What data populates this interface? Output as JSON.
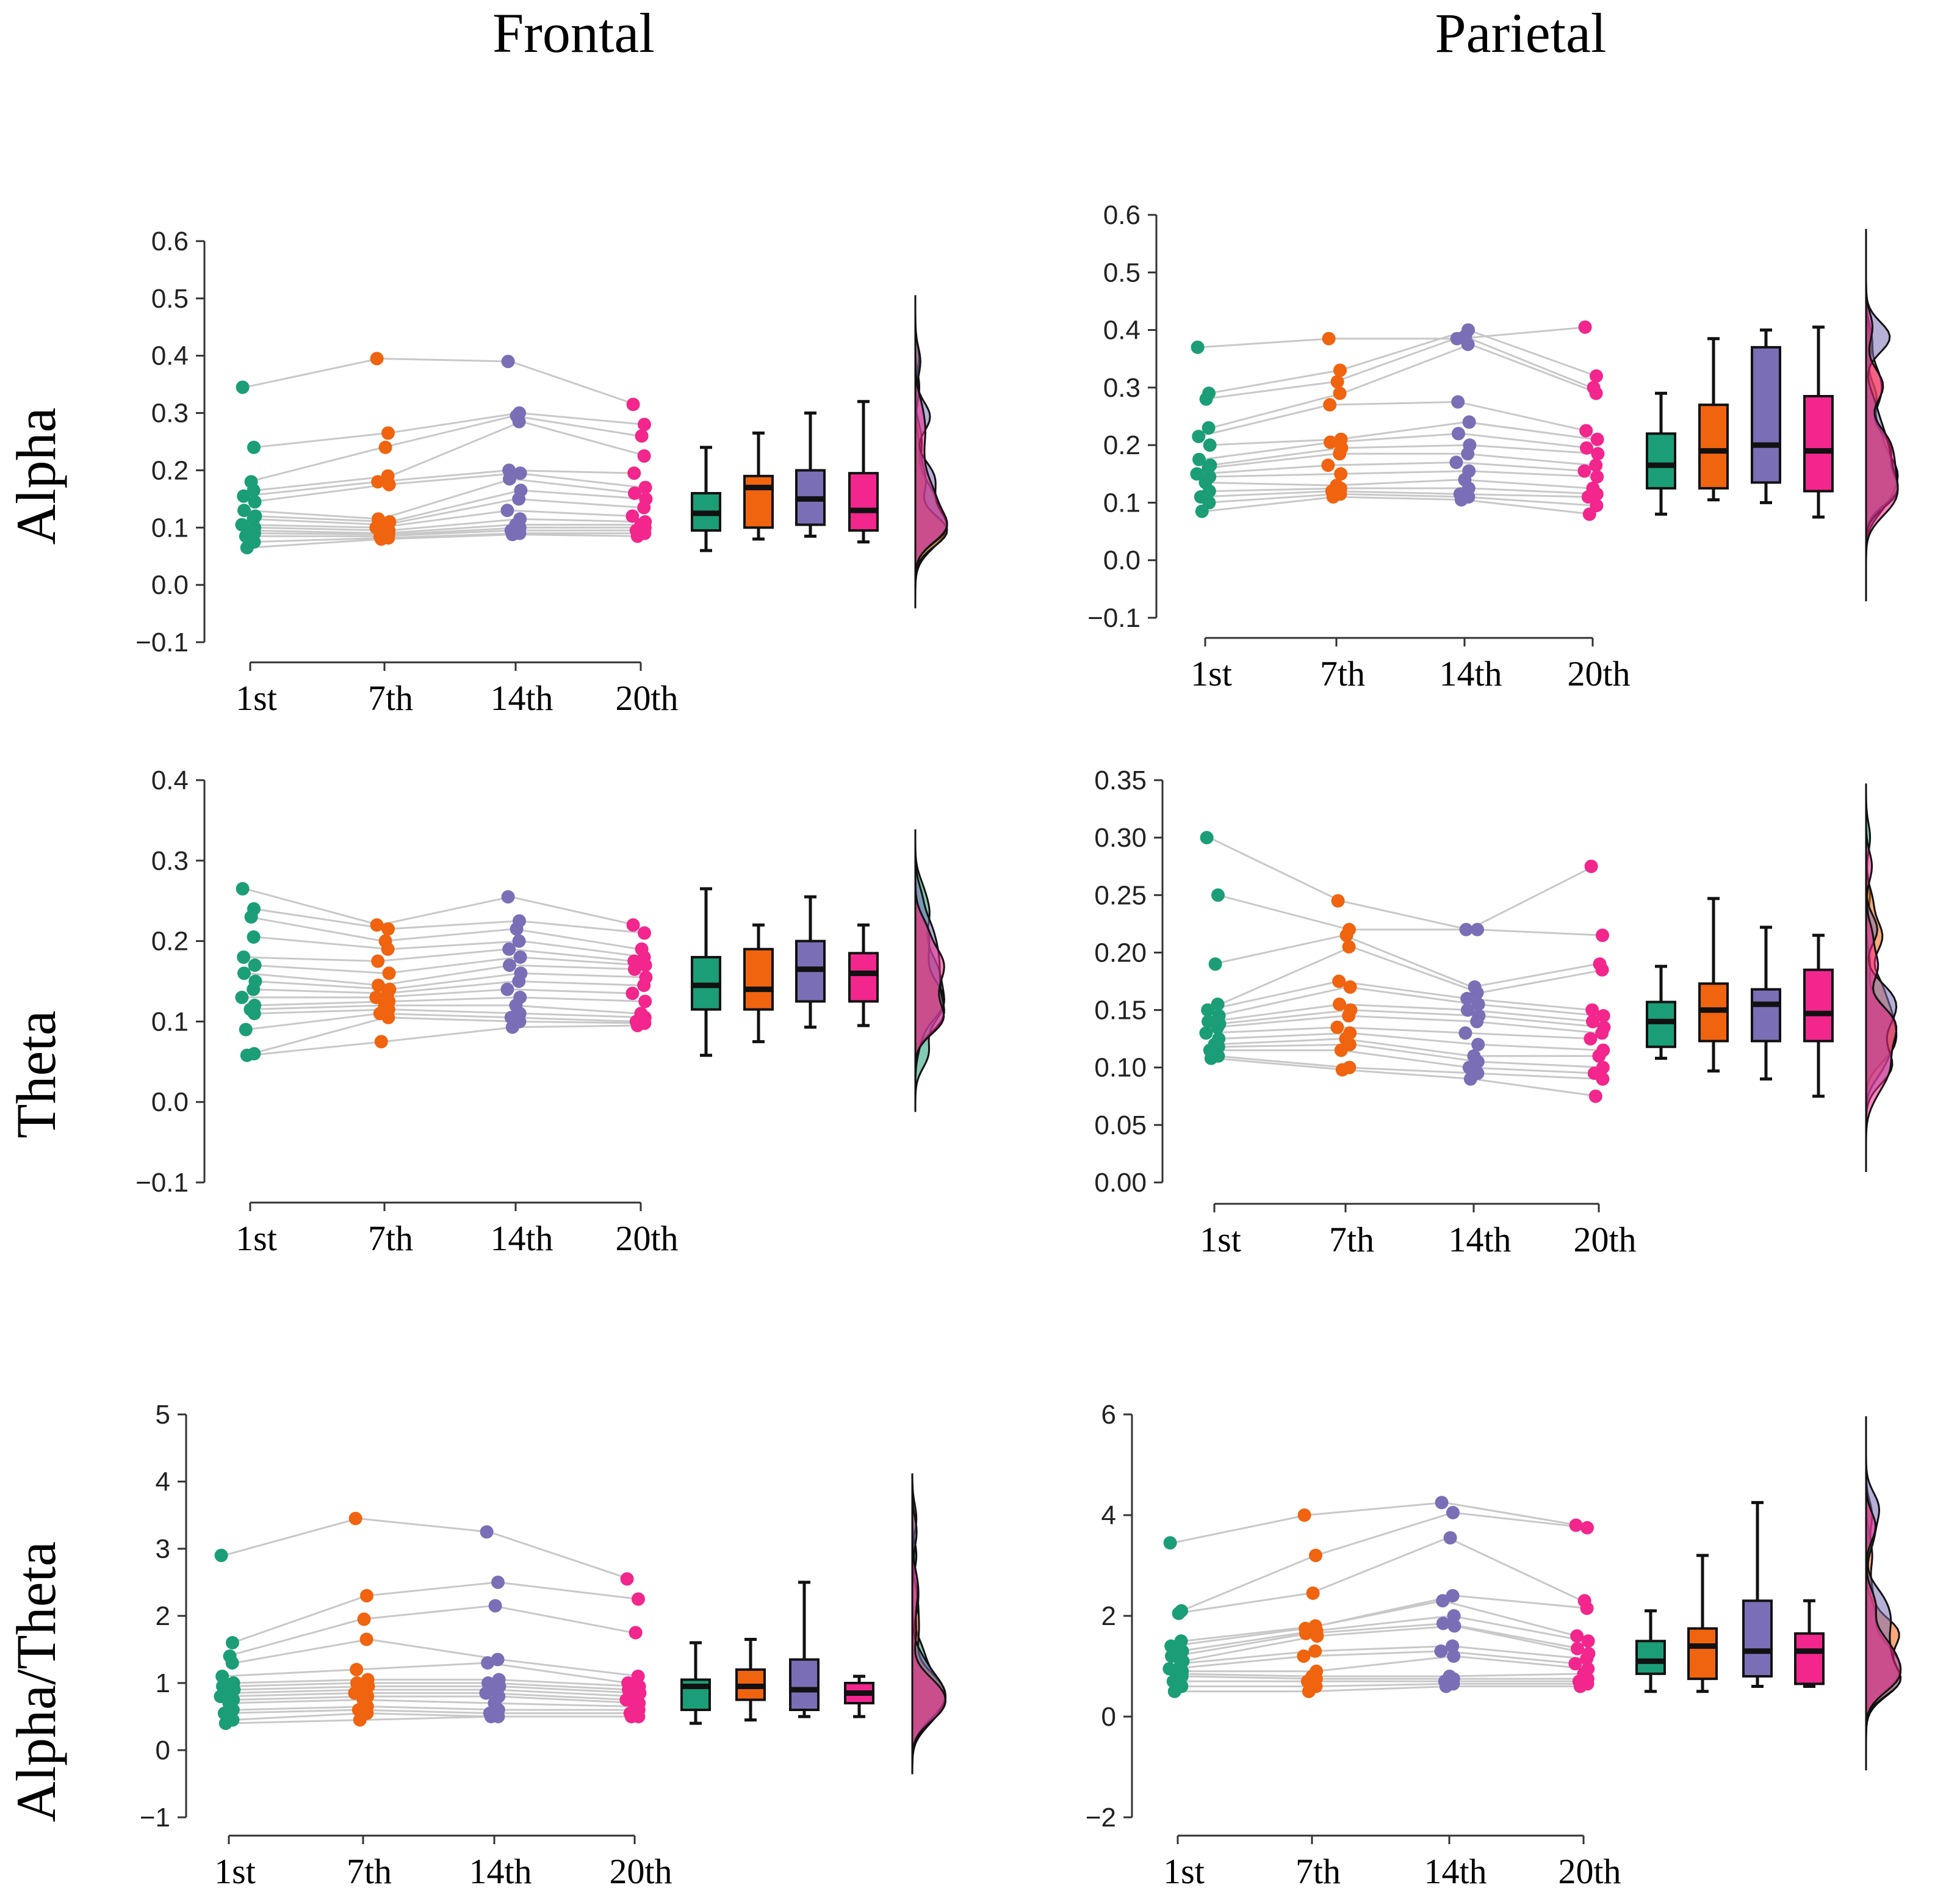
{
  "titles": {
    "frontal": "Frontal",
    "parietal": "Parietal"
  },
  "row_labels": {
    "alpha": "Alpha",
    "theta": "Theta",
    "ratio": "Alpha/Theta"
  },
  "colors": {
    "1st": "#1b9e77",
    "7th": "#f0630f",
    "14th": "#7a6fb6",
    "20th": "#f2268d"
  },
  "chart_data": [
    {
      "id": "frontal-alpha",
      "type": "raincloud",
      "region": "Frontal",
      "measure": "Alpha",
      "categories": [
        "1st",
        "7th",
        "14th",
        "20th"
      ],
      "yticks": [
        "0.6",
        "0.5",
        "0.4",
        "0.3",
        "0.2",
        "0.1",
        "0.0",
        "−0.1"
      ],
      "ylim": [
        -0.1,
        0.6
      ],
      "subjects": [
        [
          0.345,
          0.395,
          0.39,
          0.315
        ],
        [
          0.24,
          0.265,
          0.3,
          0.28
        ],
        [
          0.18,
          0.24,
          0.295,
          0.26
        ],
        [
          0.165,
          0.19,
          0.285,
          0.225
        ],
        [
          0.155,
          0.18,
          0.2,
          0.195
        ],
        [
          0.145,
          0.175,
          0.195,
          0.17
        ],
        [
          0.13,
          0.115,
          0.185,
          0.16
        ],
        [
          0.12,
          0.11,
          0.165,
          0.15
        ],
        [
          0.115,
          0.105,
          0.15,
          0.135
        ],
        [
          0.105,
          0.1,
          0.13,
          0.12
        ],
        [
          0.1,
          0.095,
          0.115,
          0.11
        ],
        [
          0.095,
          0.09,
          0.105,
          0.105
        ],
        [
          0.09,
          0.088,
          0.1,
          0.1
        ],
        [
          0.085,
          0.085,
          0.095,
          0.095
        ],
        [
          0.075,
          0.082,
          0.09,
          0.09
        ],
        [
          0.065,
          0.08,
          0.088,
          0.085
        ]
      ],
      "box": [
        {
          "min": 0.06,
          "q1": 0.095,
          "median": 0.125,
          "q3": 0.16,
          "max": 0.24
        },
        {
          "min": 0.08,
          "q1": 0.1,
          "median": 0.17,
          "q3": 0.19,
          "max": 0.265
        },
        {
          "min": 0.085,
          "q1": 0.105,
          "median": 0.15,
          "q3": 0.2,
          "max": 0.3
        },
        {
          "min": 0.075,
          "q1": 0.095,
          "median": 0.13,
          "q3": 0.195,
          "max": 0.32
        }
      ]
    },
    {
      "id": "parietal-alpha",
      "type": "raincloud",
      "region": "Parietal",
      "measure": "Alpha",
      "categories": [
        "1st",
        "7th",
        "14th",
        "20th"
      ],
      "yticks": [
        "0.6",
        "0.5",
        "0.4",
        "0.3",
        "0.2",
        "0.1",
        "0.0",
        "−0.1"
      ],
      "ylim": [
        -0.1,
        0.6
      ],
      "subjects": [
        [
          0.37,
          0.385,
          0.385,
          0.405
        ],
        [
          0.29,
          0.33,
          0.4,
          0.32
        ],
        [
          0.28,
          0.31,
          0.39,
          0.3
        ],
        [
          0.23,
          0.29,
          0.375,
          0.29
        ],
        [
          0.215,
          0.27,
          0.275,
          0.225
        ],
        [
          0.2,
          0.21,
          0.24,
          0.21
        ],
        [
          0.175,
          0.205,
          0.22,
          0.195
        ],
        [
          0.165,
          0.195,
          0.2,
          0.185
        ],
        [
          0.16,
          0.185,
          0.185,
          0.165
        ],
        [
          0.15,
          0.165,
          0.17,
          0.155
        ],
        [
          0.145,
          0.15,
          0.155,
          0.145
        ],
        [
          0.135,
          0.13,
          0.14,
          0.125
        ],
        [
          0.12,
          0.125,
          0.125,
          0.115
        ],
        [
          0.11,
          0.12,
          0.115,
          0.11
        ],
        [
          0.1,
          0.115,
          0.11,
          0.095
        ],
        [
          0.085,
          0.11,
          0.105,
          0.08
        ]
      ],
      "box": [
        {
          "min": 0.08,
          "q1": 0.125,
          "median": 0.165,
          "q3": 0.22,
          "max": 0.29
        },
        {
          "min": 0.105,
          "q1": 0.125,
          "median": 0.19,
          "q3": 0.27,
          "max": 0.385
        },
        {
          "min": 0.1,
          "q1": 0.135,
          "median": 0.2,
          "q3": 0.37,
          "max": 0.4
        },
        {
          "min": 0.075,
          "q1": 0.12,
          "median": 0.19,
          "q3": 0.285,
          "max": 0.405
        }
      ]
    },
    {
      "id": "frontal-theta",
      "type": "raincloud",
      "region": "Frontal",
      "measure": "Theta",
      "categories": [
        "1st",
        "7th",
        "14th",
        "20th"
      ],
      "yticks": [
        "0.4",
        "0.3",
        "0.2",
        "0.1",
        "0.0",
        "−0.1"
      ],
      "ylim": [
        -0.1,
        0.4
      ],
      "subjects": [
        [
          0.265,
          0.22,
          0.255,
          0.22
        ],
        [
          0.24,
          0.215,
          0.225,
          0.21
        ],
        [
          0.23,
          0.2,
          0.215,
          0.19
        ],
        [
          0.205,
          0.19,
          0.2,
          0.18
        ],
        [
          0.18,
          0.175,
          0.19,
          0.175
        ],
        [
          0.17,
          0.16,
          0.18,
          0.17
        ],
        [
          0.16,
          0.145,
          0.17,
          0.165
        ],
        [
          0.15,
          0.14,
          0.16,
          0.155
        ],
        [
          0.14,
          0.135,
          0.15,
          0.145
        ],
        [
          0.13,
          0.13,
          0.14,
          0.135
        ],
        [
          0.12,
          0.125,
          0.13,
          0.125
        ],
        [
          0.115,
          0.12,
          0.12,
          0.11
        ],
        [
          0.11,
          0.115,
          0.11,
          0.105
        ],
        [
          0.09,
          0.11,
          0.105,
          0.1
        ],
        [
          0.06,
          0.105,
          0.1,
          0.098
        ],
        [
          0.058,
          0.075,
          0.093,
          0.095
        ]
      ],
      "box": [
        {
          "min": 0.058,
          "q1": 0.115,
          "median": 0.145,
          "q3": 0.18,
          "max": 0.265
        },
        {
          "min": 0.075,
          "q1": 0.115,
          "median": 0.14,
          "q3": 0.19,
          "max": 0.22
        },
        {
          "min": 0.093,
          "q1": 0.125,
          "median": 0.165,
          "q3": 0.2,
          "max": 0.255
        },
        {
          "min": 0.095,
          "q1": 0.125,
          "median": 0.16,
          "q3": 0.185,
          "max": 0.22
        }
      ]
    },
    {
      "id": "parietal-theta",
      "type": "raincloud",
      "region": "Parietal",
      "measure": "Theta",
      "categories": [
        "1st",
        "7th",
        "14th",
        "20th"
      ],
      "yticks": [
        "0.35",
        "0.30",
        "0.25",
        "0.20",
        "0.15",
        "0.10",
        "0.05",
        "0.00"
      ],
      "ylim": [
        0.0,
        0.35
      ],
      "subjects": [
        [
          0.3,
          0.245,
          0.22,
          0.275
        ],
        [
          0.25,
          0.22,
          0.22,
          0.215
        ],
        [
          0.19,
          0.215,
          0.17,
          0.19
        ],
        [
          0.155,
          0.205,
          0.165,
          0.185
        ],
        [
          0.15,
          0.175,
          0.16,
          0.15
        ],
        [
          0.145,
          0.17,
          0.155,
          0.145
        ],
        [
          0.14,
          0.155,
          0.15,
          0.14
        ],
        [
          0.138,
          0.15,
          0.145,
          0.135
        ],
        [
          0.135,
          0.145,
          0.14,
          0.13
        ],
        [
          0.13,
          0.135,
          0.13,
          0.125
        ],
        [
          0.125,
          0.13,
          0.12,
          0.115
        ],
        [
          0.12,
          0.125,
          0.11,
          0.11
        ],
        [
          0.118,
          0.12,
          0.105,
          0.1
        ],
        [
          0.115,
          0.115,
          0.1,
          0.095
        ],
        [
          0.11,
          0.1,
          0.095,
          0.09
        ],
        [
          0.108,
          0.098,
          0.09,
          0.075
        ]
      ],
      "box": [
        {
          "min": 0.108,
          "q1": 0.118,
          "median": 0.14,
          "q3": 0.157,
          "max": 0.188
        },
        {
          "min": 0.097,
          "q1": 0.123,
          "median": 0.15,
          "q3": 0.173,
          "max": 0.247
        },
        {
          "min": 0.09,
          "q1": 0.123,
          "median": 0.155,
          "q3": 0.168,
          "max": 0.222
        },
        {
          "min": 0.075,
          "q1": 0.123,
          "median": 0.147,
          "q3": 0.185,
          "max": 0.215
        }
      ]
    },
    {
      "id": "frontal-ratio",
      "type": "raincloud",
      "region": "Frontal",
      "measure": "Alpha/Theta",
      "categories": [
        "1st",
        "7th",
        "14th",
        "20th"
      ],
      "yticks": [
        "5",
        "4",
        "3",
        "2",
        "1",
        "0",
        "−1"
      ],
      "ylim": [
        -1,
        5
      ],
      "subjects": [
        [
          2.9,
          3.45,
          3.25,
          2.55
        ],
        [
          1.6,
          2.3,
          2.5,
          2.25
        ],
        [
          1.4,
          1.95,
          2.15,
          1.75
        ],
        [
          1.3,
          1.65,
          1.35,
          1.1
        ],
        [
          1.1,
          1.2,
          1.3,
          1.0
        ],
        [
          1.0,
          1.05,
          1.05,
          0.95
        ],
        [
          0.95,
          1.0,
          1.0,
          0.9
        ],
        [
          0.9,
          0.95,
          0.95,
          0.85
        ],
        [
          0.85,
          0.9,
          0.9,
          0.8
        ],
        [
          0.8,
          0.85,
          0.85,
          0.75
        ],
        [
          0.75,
          0.8,
          0.8,
          0.7
        ],
        [
          0.7,
          0.75,
          0.7,
          0.65
        ],
        [
          0.6,
          0.65,
          0.6,
          0.6
        ],
        [
          0.55,
          0.6,
          0.55,
          0.55
        ],
        [
          0.45,
          0.55,
          0.5,
          0.5
        ],
        [
          0.4,
          0.45,
          0.5,
          0.5
        ]
      ],
      "box": [
        {
          "min": 0.4,
          "q1": 0.6,
          "median": 0.95,
          "q3": 1.05,
          "max": 1.6
        },
        {
          "min": 0.45,
          "q1": 0.75,
          "median": 0.95,
          "q3": 1.2,
          "max": 1.65
        },
        {
          "min": 0.5,
          "q1": 0.6,
          "median": 0.9,
          "q3": 1.35,
          "max": 2.5
        },
        {
          "min": 0.5,
          "q1": 0.7,
          "median": 0.85,
          "q3": 1.0,
          "max": 1.1
        }
      ]
    },
    {
      "id": "parietal-ratio",
      "type": "raincloud",
      "region": "Parietal",
      "measure": "Alpha/Theta",
      "categories": [
        "1st",
        "7th",
        "14th",
        "20th"
      ],
      "yticks": [
        "6",
        "4",
        "2",
        "0",
        "−2"
      ],
      "ylim": [
        -2,
        6
      ],
      "subjects": [
        [
          3.45,
          4.0,
          4.25,
          3.8
        ],
        [
          2.1,
          3.2,
          4.05,
          3.75
        ],
        [
          2.05,
          2.45,
          3.55,
          2.3
        ],
        [
          1.5,
          1.8,
          2.4,
          2.15
        ],
        [
          1.4,
          1.75,
          2.3,
          1.6
        ],
        [
          1.3,
          1.7,
          2.0,
          1.5
        ],
        [
          1.2,
          1.65,
          1.85,
          1.35
        ],
        [
          1.1,
          1.6,
          1.8,
          1.25
        ],
        [
          1.05,
          1.3,
          1.4,
          1.15
        ],
        [
          0.95,
          1.2,
          1.3,
          1.05
        ],
        [
          0.9,
          0.9,
          1.2,
          0.95
        ],
        [
          0.85,
          0.8,
          0.8,
          0.85
        ],
        [
          0.8,
          0.75,
          0.75,
          0.75
        ],
        [
          0.7,
          0.7,
          0.7,
          0.7
        ],
        [
          0.6,
          0.6,
          0.65,
          0.65
        ],
        [
          0.5,
          0.5,
          0.6,
          0.6
        ]
      ],
      "box": [
        {
          "min": 0.5,
          "q1": 0.85,
          "median": 1.1,
          "q3": 1.5,
          "max": 2.1
        },
        {
          "min": 0.5,
          "q1": 0.75,
          "median": 1.4,
          "q3": 1.75,
          "max": 3.2
        },
        {
          "min": 0.6,
          "q1": 0.8,
          "median": 1.3,
          "q3": 2.3,
          "max": 4.25
        },
        {
          "min": 0.6,
          "q1": 0.65,
          "median": 1.3,
          "q3": 1.65,
          "max": 2.3
        }
      ]
    }
  ]
}
